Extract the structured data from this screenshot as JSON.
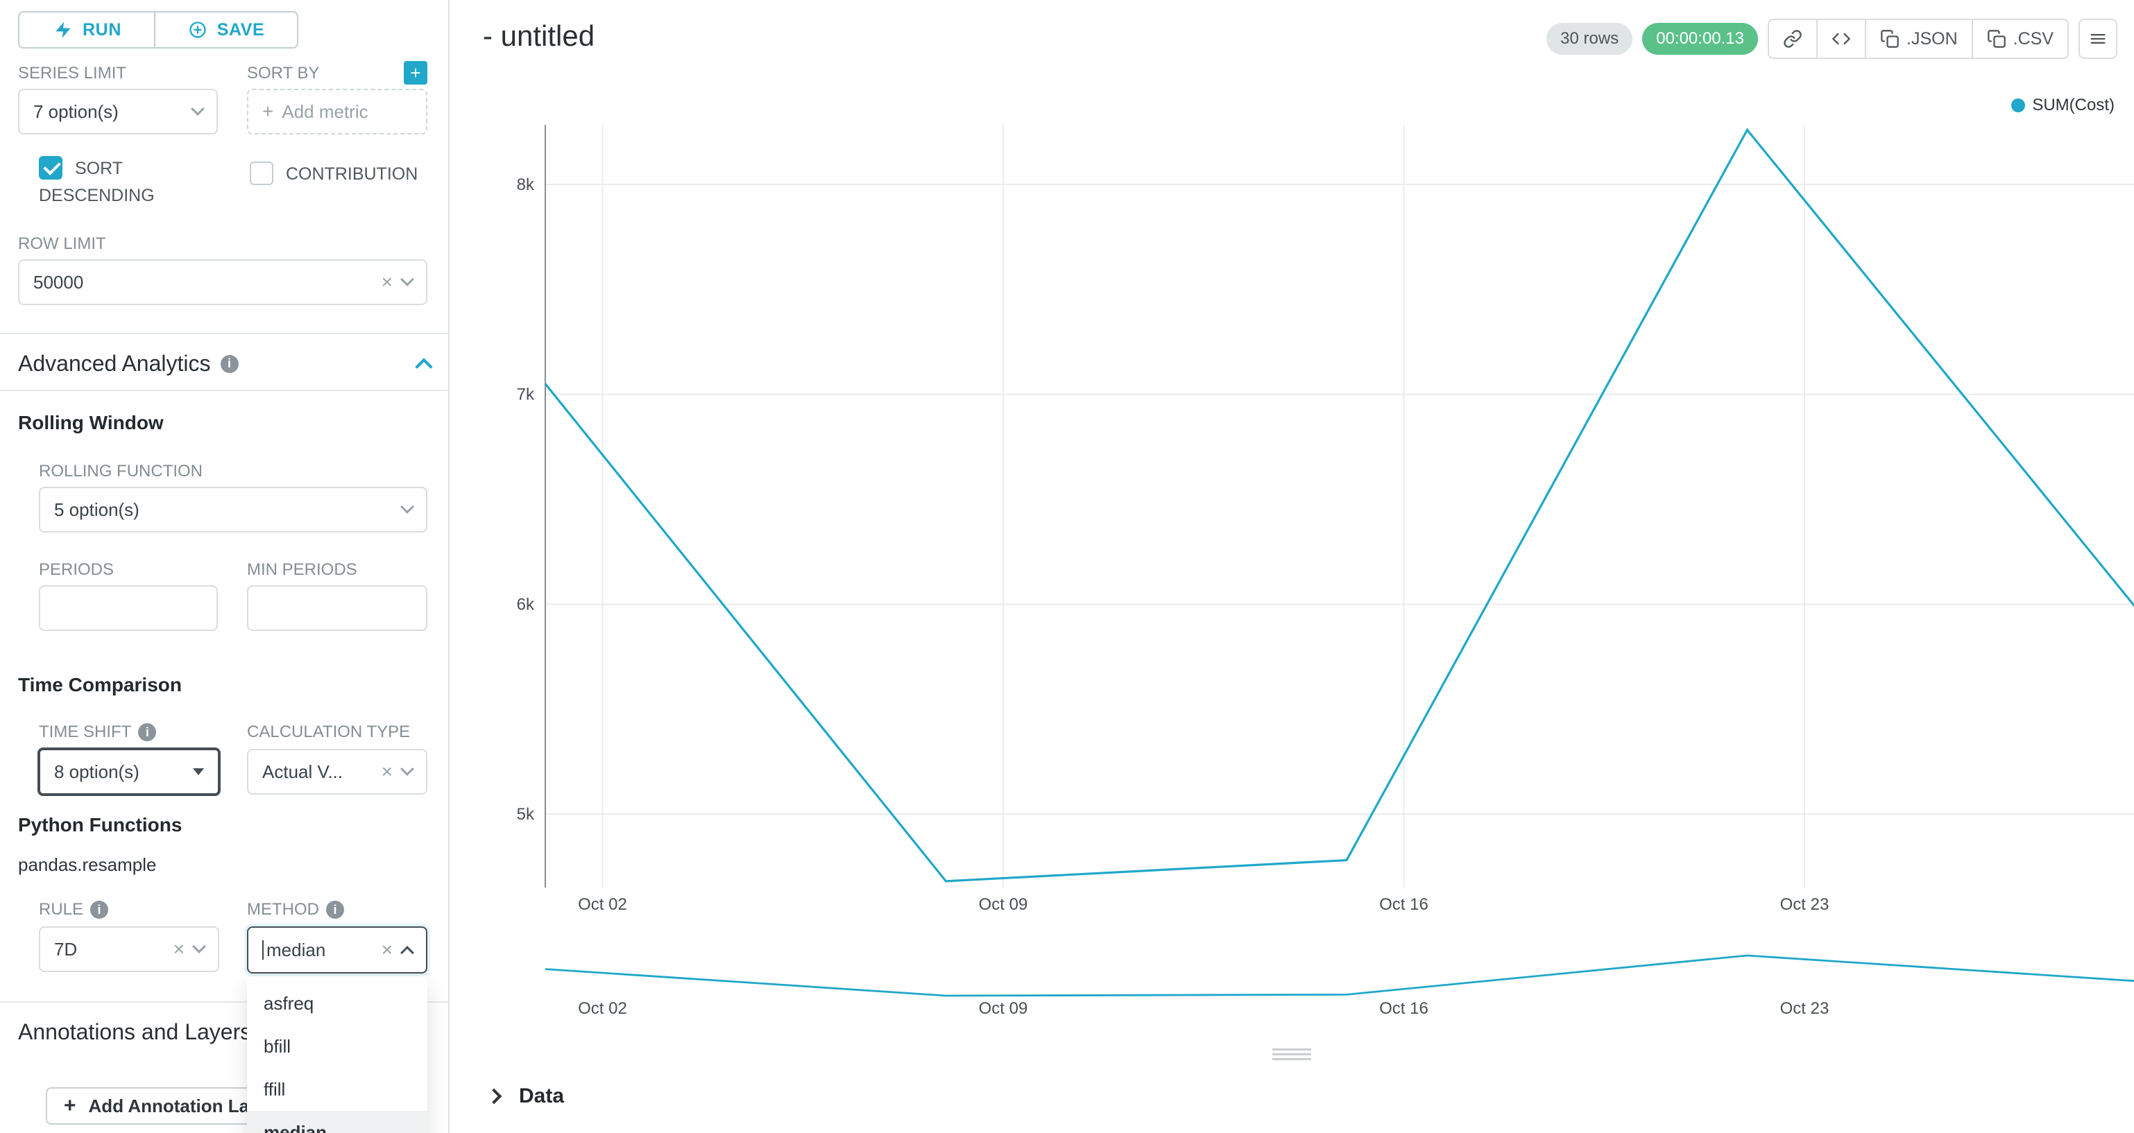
{
  "colors": {
    "accent": "#20A7C9",
    "success": "#5AC189",
    "line": "#20A7C9"
  },
  "toolbar": {
    "run_label": "RUN",
    "save_label": "SAVE"
  },
  "query": {
    "series_limit_label": "SERIES LIMIT",
    "series_limit_value": "7 option(s)",
    "sort_by_label": "SORT BY",
    "sort_by_placeholder": "Add metric",
    "sort_descending_label": "SORT DESCENDING",
    "contribution_label": "CONTRIBUTION",
    "row_limit_label": "ROW LIMIT",
    "row_limit_value": "50000"
  },
  "advanced_analytics": {
    "title": "Advanced Analytics",
    "rolling_window_title": "Rolling Window",
    "rolling_function_label": "ROLLING FUNCTION",
    "rolling_function_value": "5 option(s)",
    "periods_label": "PERIODS",
    "min_periods_label": "MIN PERIODS",
    "time_comparison_title": "Time Comparison",
    "time_shift_label": "TIME SHIFT",
    "time_shift_value": "8 option(s)",
    "calculation_type_label": "CALCULATION TYPE",
    "calculation_type_value": "Actual V...",
    "python_functions_title": "Python Functions",
    "pandas_resample_label": "pandas.resample",
    "rule_label": "RULE",
    "rule_value": "7D",
    "method_label": "METHOD",
    "method_value": "median"
  },
  "method_dropdown": {
    "options": [
      "asfreq",
      "bfill",
      "ffill",
      "median"
    ],
    "selected": "median"
  },
  "annotations": {
    "title": "Annotations and Layers",
    "add_button_label": "Add Annotation Layer"
  },
  "header": {
    "title": "- untitled",
    "rows_badge": "30 rows",
    "timer_badge": "00:00:00.13",
    "json_label": ".JSON",
    "csv_label": ".CSV"
  },
  "chart_data": {
    "type": "line",
    "title": "",
    "legend": [
      "SUM(Cost)"
    ],
    "legend_position": "top-right",
    "grid": true,
    "line_color": "#20A7C9",
    "ylim": [
      4650,
      8290
    ],
    "y_ticks": [
      {
        "label": "5k",
        "value": 5000
      },
      {
        "label": "6k",
        "value": 6000
      },
      {
        "label": "7k",
        "value": 7000
      },
      {
        "label": "8k",
        "value": 8000
      }
    ],
    "x_ticks": [
      {
        "label": "Oct 02",
        "day": 1
      },
      {
        "label": "Oct 09",
        "day": 8
      },
      {
        "label": "Oct 16",
        "day": 15
      },
      {
        "label": "Oct 23",
        "day": 22
      }
    ],
    "series": [
      {
        "name": "SUM(Cost)",
        "x_labels": [
          "Oct 01",
          "Oct 08",
          "Oct 15",
          "Oct 22",
          "Oct 29"
        ],
        "x_days": [
          0,
          7,
          14,
          21,
          27.8
        ],
        "values": [
          7050,
          4680,
          4780,
          8260,
          5980
        ]
      }
    ],
    "has_mini_range_chart": true
  },
  "data_panel": {
    "label": "Data"
  }
}
